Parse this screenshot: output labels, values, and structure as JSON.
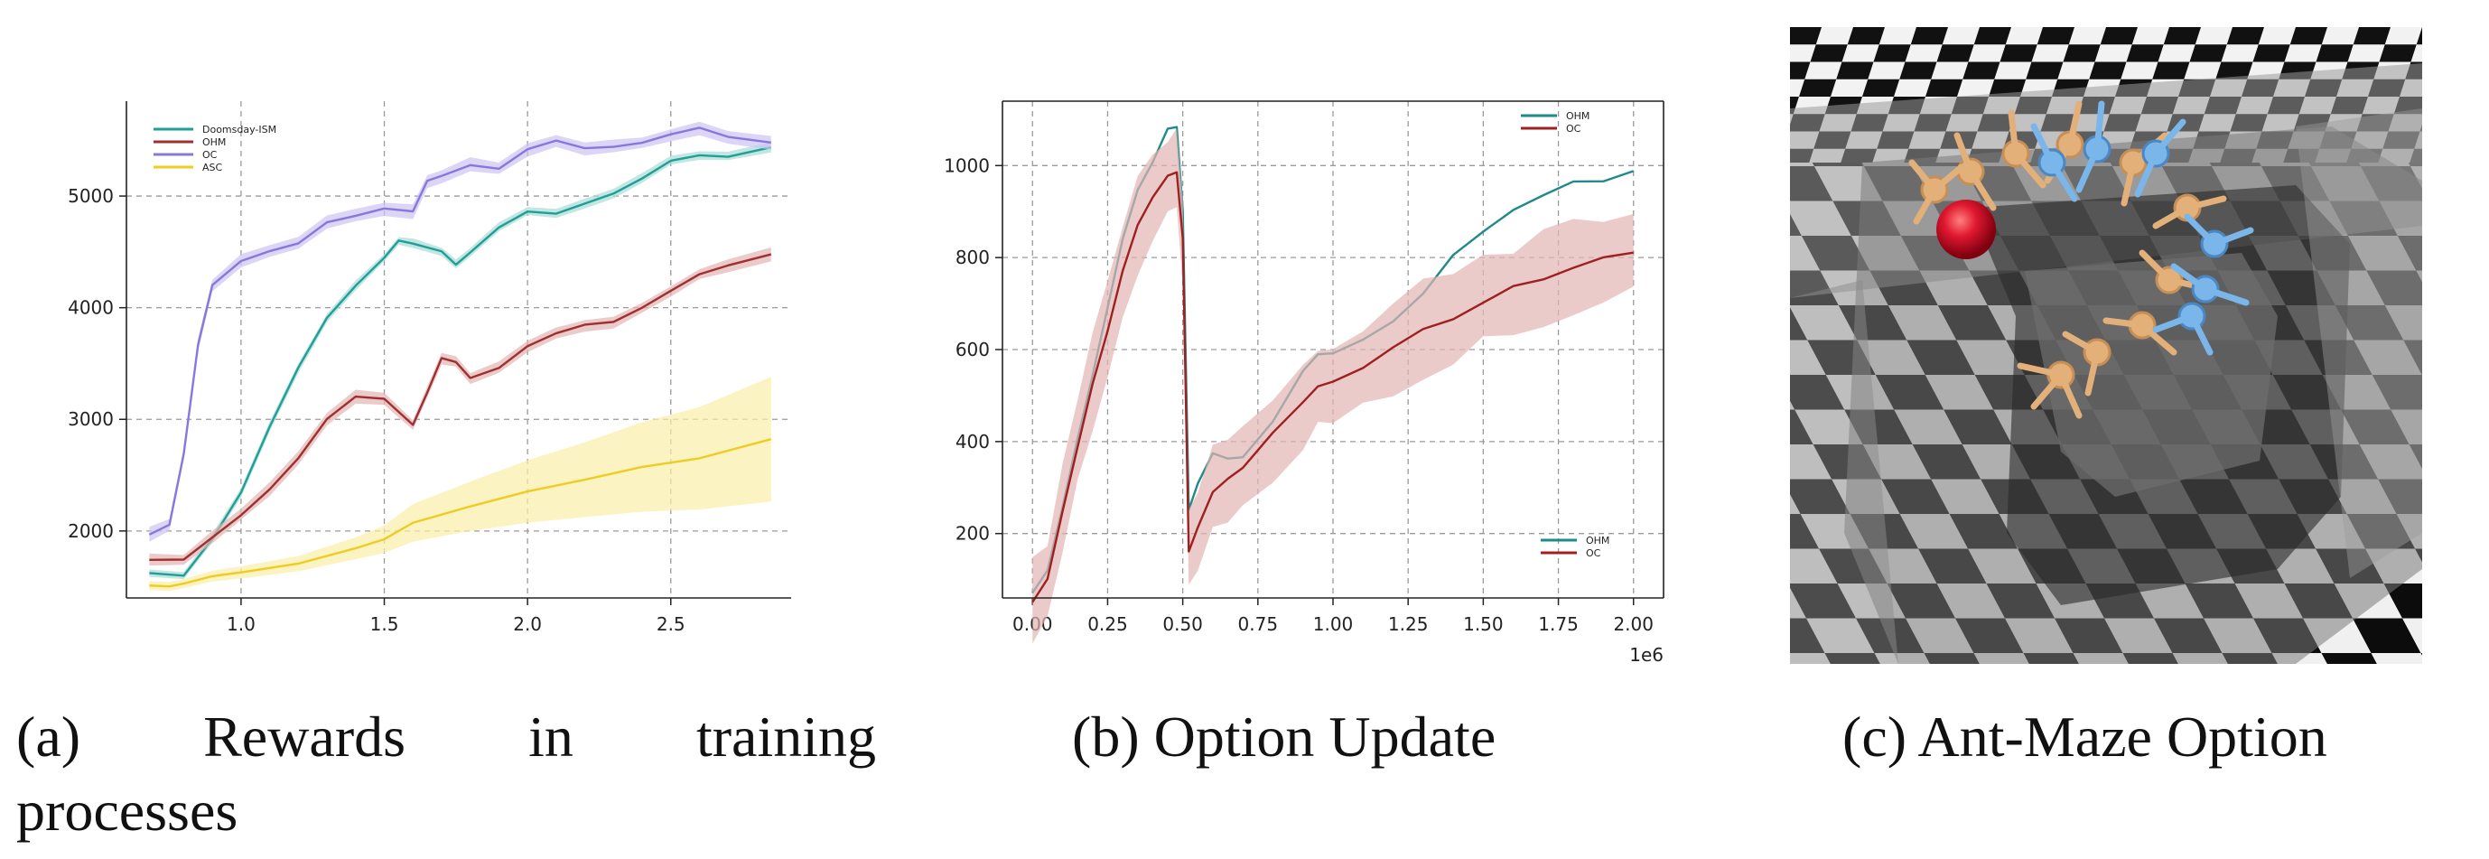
{
  "captions": {
    "a_label": "(a)",
    "a_words": [
      "Rewards",
      "in",
      "training"
    ],
    "a_line2": "processes",
    "b": "(b)  Option Update",
    "c": "(c)  Ant-Maze Option"
  },
  "chart_data": [
    {
      "type": "line",
      "xlim": [
        0.6,
        2.92
      ],
      "ylim": [
        1400,
        5850
      ],
      "xticks": [
        1.0,
        1.5,
        2.0,
        2.5
      ],
      "xtick_labels": [
        "1.0",
        "1.5",
        "2.0",
        "2.5"
      ],
      "yticks": [
        2000,
        3000,
        4000,
        5000
      ],
      "ytick_labels": [
        "2000",
        "3000",
        "4000",
        "5000"
      ],
      "grid": true,
      "legend_position": "top-left",
      "series": [
        {
          "name": "Doomsday-ISM",
          "color": "#1f9f97",
          "band": 30,
          "x": [
            0.68,
            0.8,
            0.9,
            1.0,
            1.1,
            1.2,
            1.3,
            1.4,
            1.5,
            1.55,
            1.6,
            1.7,
            1.75,
            1.8,
            1.9,
            2.0,
            2.1,
            2.2,
            2.3,
            2.4,
            2.5,
            2.6,
            2.7,
            2.85
          ],
          "y": [
            1640,
            1640,
            1980,
            2400,
            3000,
            3500,
            3950,
            4250,
            4500,
            4600,
            4600,
            4500,
            4380,
            4500,
            4700,
            4870,
            4900,
            5000,
            5050,
            5200,
            5350,
            5400,
            5430,
            5430
          ]
        },
        {
          "name": "OHM",
          "color": "#a03030",
          "band": 40,
          "x": [
            0.68,
            0.8,
            0.9,
            1.0,
            1.1,
            1.2,
            1.3,
            1.4,
            1.5,
            1.6,
            1.65,
            1.7,
            1.75,
            1.8,
            1.9,
            2.0,
            2.1,
            2.2,
            2.3,
            2.4,
            2.5,
            2.6,
            2.7,
            2.85
          ],
          "y": [
            1820,
            1820,
            1950,
            2150,
            2350,
            2650,
            3000,
            3200,
            3180,
            3000,
            3300,
            3580,
            3550,
            3440,
            3500,
            3700,
            3800,
            3850,
            3850,
            4000,
            4150,
            4300,
            4400,
            4500
          ]
        },
        {
          "name": "OC",
          "color": "#8877dd",
          "band": 45,
          "x": [
            0.68,
            0.75,
            0.8,
            0.85,
            0.9,
            1.0,
            1.1,
            1.2,
            1.3,
            1.4,
            1.5,
            1.6,
            1.65,
            1.7,
            1.8,
            1.9,
            2.0,
            2.1,
            2.2,
            2.3,
            2.4,
            2.5,
            2.6,
            2.7,
            2.85
          ],
          "y": [
            1980,
            2060,
            2700,
            3700,
            4250,
            4450,
            4550,
            4650,
            4800,
            4900,
            4900,
            4850,
            5130,
            5200,
            5300,
            5260,
            5420,
            5500,
            5500,
            5520,
            5550,
            5600,
            5650,
            5600,
            5550
          ]
        },
        {
          "name": "ASC",
          "color": "#eecc22",
          "band_rel": 0.42,
          "x": [
            0.68,
            0.75,
            0.8,
            0.9,
            1.0,
            1.2,
            1.4,
            1.5,
            1.6,
            1.8,
            2.0,
            2.2,
            2.4,
            2.6,
            2.85
          ],
          "y": [
            1580,
            1540,
            1580,
            1620,
            1650,
            1720,
            1820,
            1930,
            2100,
            2220,
            2350,
            2500,
            2620,
            2730,
            2880
          ]
        }
      ]
    },
    {
      "type": "line",
      "xlim": [
        -0.1,
        2.1
      ],
      "ylim": [
        60,
        1140
      ],
      "xticks": [
        0.0,
        0.25,
        0.5,
        0.75,
        1.0,
        1.25,
        1.5,
        1.75,
        2.0
      ],
      "xtick_labels": [
        "0.00",
        "0.25",
        "0.50",
        "0.75",
        "1.00",
        "1.25",
        "1.50",
        "1.75",
        "2.00"
      ],
      "yticks": [
        200,
        400,
        600,
        800,
        1000
      ],
      "ytick_labels": [
        "200",
        "400",
        "600",
        "800",
        "1000"
      ],
      "x_offset_label": "1e6",
      "grid": true,
      "legend_position": "top-right and bottom-right",
      "series": [
        {
          "name": "OHM",
          "color": "#1f8a8a",
          "x": [
            0.0,
            0.05,
            0.1,
            0.15,
            0.2,
            0.25,
            0.3,
            0.35,
            0.4,
            0.45,
            0.48,
            0.5,
            0.52,
            0.55,
            0.6,
            0.65,
            0.7,
            0.8,
            0.9,
            0.95,
            1.0,
            1.1,
            1.2,
            1.3,
            1.4,
            1.5,
            1.6,
            1.7,
            1.8,
            1.9,
            2.0
          ],
          "y": [
            75,
            130,
            270,
            420,
            560,
            700,
            850,
            960,
            1020,
            1080,
            1090,
            900,
            250,
            310,
            370,
            365,
            380,
            460,
            560,
            600,
            600,
            630,
            680,
            720,
            800,
            860,
            900,
            940,
            960,
            970,
            990
          ]
        },
        {
          "name": "OC",
          "color": "#a02020",
          "band": 70,
          "x": [
            0.0,
            0.05,
            0.1,
            0.15,
            0.2,
            0.25,
            0.3,
            0.35,
            0.4,
            0.45,
            0.48,
            0.5,
            0.52,
            0.55,
            0.6,
            0.65,
            0.7,
            0.8,
            0.9,
            0.95,
            1.0,
            1.1,
            1.2,
            1.3,
            1.4,
            1.5,
            1.6,
            1.7,
            1.8,
            1.9,
            2.0
          ],
          "y": [
            70,
            120,
            250,
            390,
            520,
            640,
            770,
            870,
            930,
            990,
            1000,
            850,
            170,
            230,
            300,
            330,
            350,
            420,
            480,
            520,
            530,
            560,
            610,
            650,
            680,
            710,
            750,
            770,
            790,
            810,
            830
          ]
        }
      ]
    }
  ],
  "colors": {
    "teal_band": "#a8dcd6",
    "red_band": "#e2b4b4",
    "violet_band": "#cdc3f2",
    "yellow_band": "#fbeea8"
  }
}
